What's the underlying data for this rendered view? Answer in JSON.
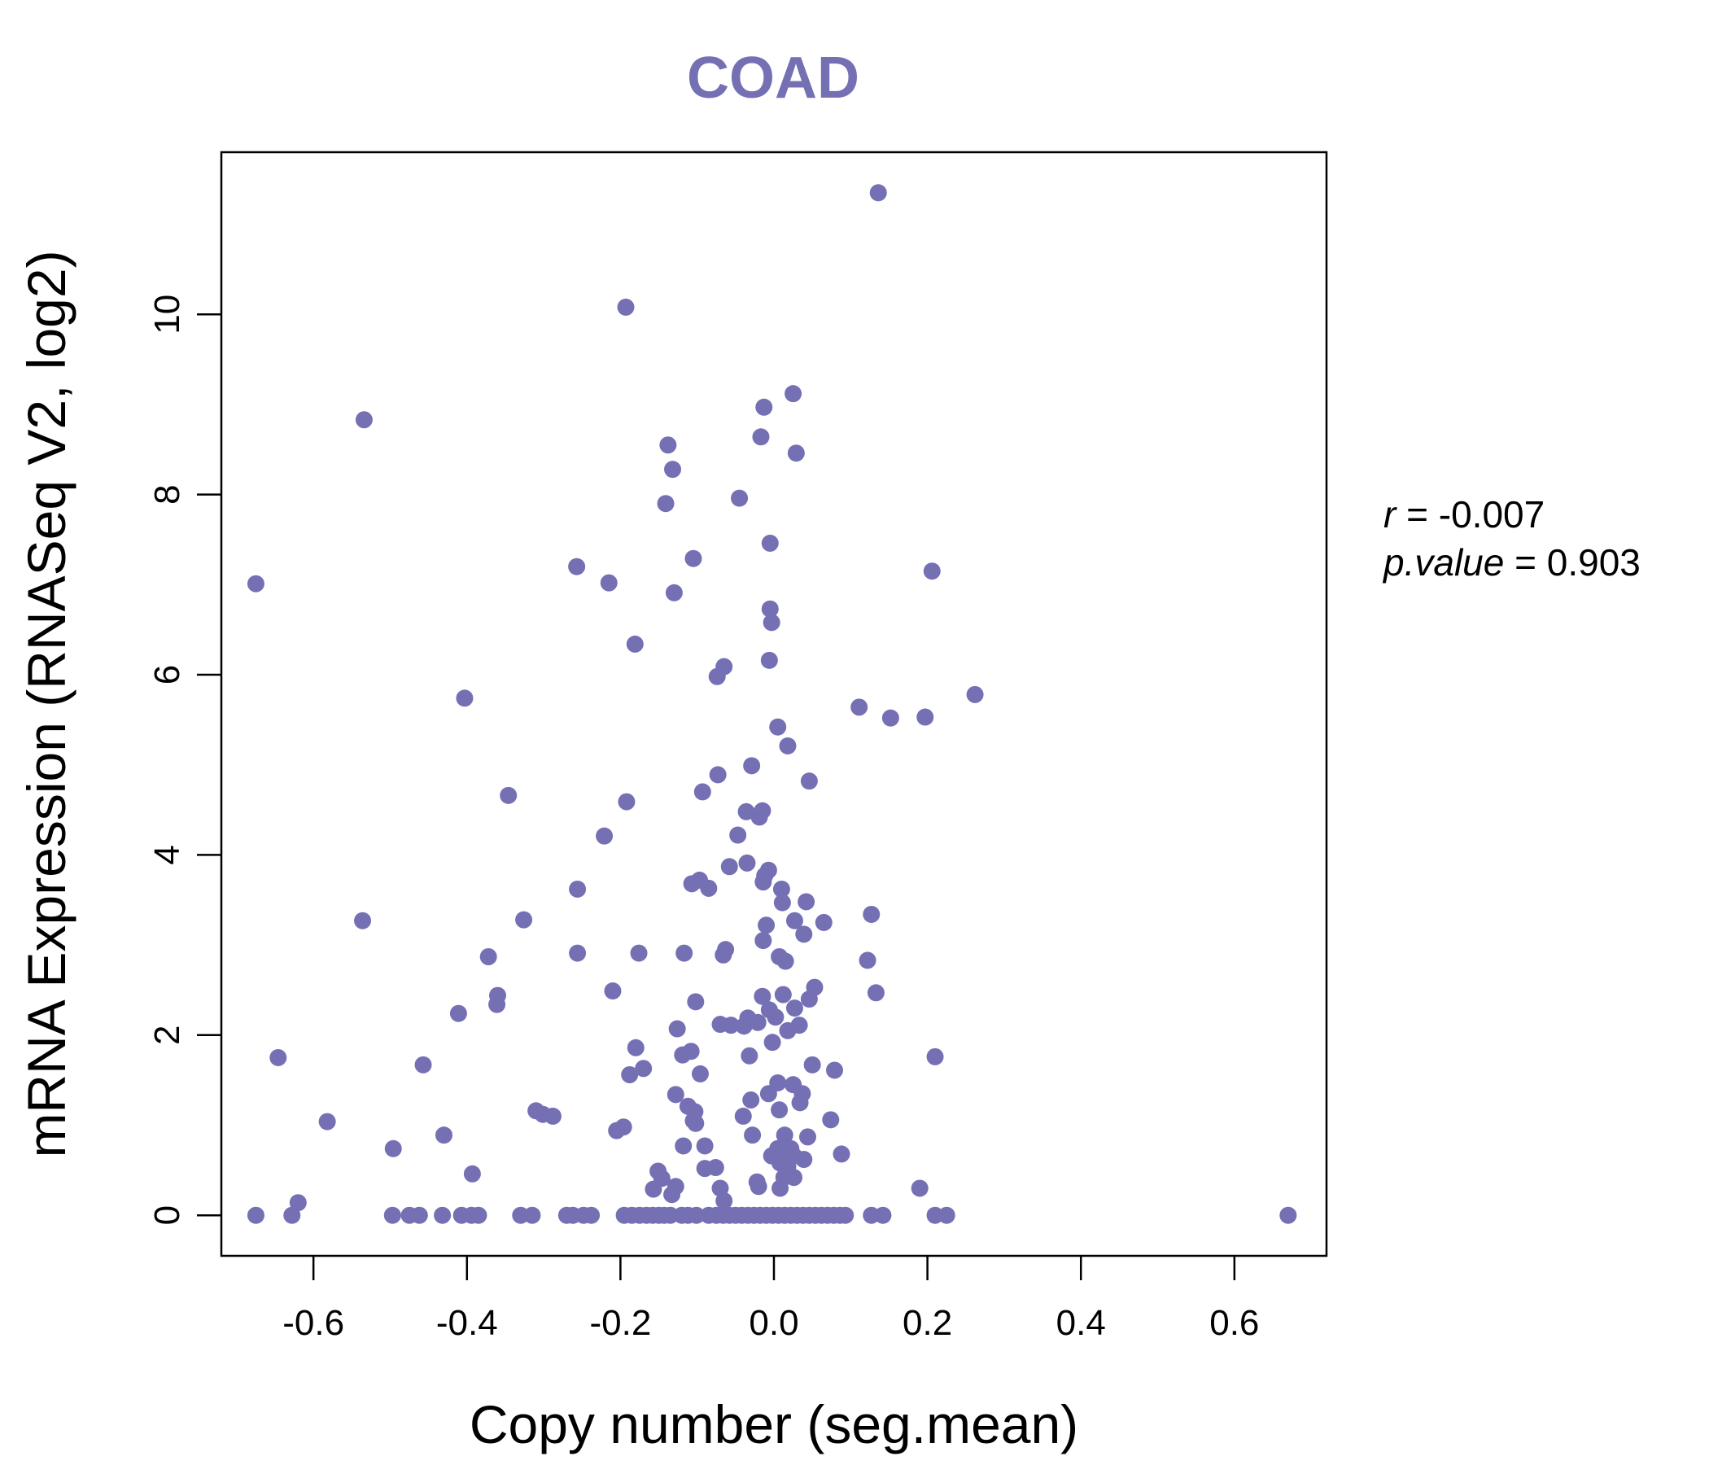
{
  "chart_data": {
    "type": "scatter",
    "title": "COAD",
    "xlabel": "Copy number (seg.mean)",
    "ylabel": "mRNA Expression (RNASeq V2, log2)",
    "xlim": [
      -0.72,
      0.72
    ],
    "ylim": [
      -0.45,
      11.8
    ],
    "x_ticks": [
      -0.6,
      -0.4,
      -0.2,
      0.0,
      0.2,
      0.4,
      0.6
    ],
    "x_tick_labels": [
      "-0.6",
      "-0.4",
      "-0.2",
      "0.0",
      "0.2",
      "0.4",
      "0.6"
    ],
    "y_ticks": [
      0,
      2,
      4,
      6,
      8,
      10
    ],
    "y_tick_labels": [
      "0",
      "2",
      "4",
      "6",
      "8",
      "10"
    ],
    "grid": false,
    "point_color": "#7570b3",
    "annotation": {
      "r_label": "r",
      "r_value": "-0.007",
      "p_label": "p.value",
      "p_value": "0.903"
    },
    "points": [
      [
        0.136,
        11.35
      ],
      [
        -0.193,
        10.08
      ],
      [
        0.025,
        9.12
      ],
      [
        -0.013,
        8.97
      ],
      [
        -0.534,
        8.83
      ],
      [
        -0.017,
        8.64
      ],
      [
        -0.138,
        8.55
      ],
      [
        0.029,
        8.46
      ],
      [
        -0.132,
        8.28
      ],
      [
        -0.045,
        7.96
      ],
      [
        -0.141,
        7.9
      ],
      [
        -0.005,
        7.46
      ],
      [
        -0.105,
        7.29
      ],
      [
        -0.257,
        7.2
      ],
      [
        0.206,
        7.15
      ],
      [
        -0.215,
        7.02
      ],
      [
        -0.675,
        7.01
      ],
      [
        -0.13,
        6.91
      ],
      [
        -0.005,
        6.73
      ],
      [
        -0.003,
        6.58
      ],
      [
        -0.181,
        6.34
      ],
      [
        -0.065,
        6.09
      ],
      [
        -0.006,
        6.16
      ],
      [
        -0.074,
        5.98
      ],
      [
        0.262,
        5.78
      ],
      [
        -0.403,
        5.74
      ],
      [
        0.111,
        5.64
      ],
      [
        0.152,
        5.52
      ],
      [
        0.197,
        5.53
      ],
      [
        0.005,
        5.42
      ],
      [
        0.018,
        5.21
      ],
      [
        -0.029,
        4.99
      ],
      [
        -0.073,
        4.89
      ],
      [
        0.046,
        4.82
      ],
      [
        -0.093,
        4.7
      ],
      [
        -0.346,
        4.66
      ],
      [
        -0.192,
        4.59
      ],
      [
        -0.036,
        4.48
      ],
      [
        -0.019,
        4.42
      ],
      [
        -0.015,
        4.49
      ],
      [
        -0.047,
        4.22
      ],
      [
        -0.221,
        4.21
      ],
      [
        -0.035,
        3.91
      ],
      [
        -0.058,
        3.87
      ],
      [
        -0.012,
        3.77
      ],
      [
        -0.007,
        3.83
      ],
      [
        -0.014,
        3.7
      ],
      [
        -0.107,
        3.68
      ],
      [
        -0.097,
        3.72
      ],
      [
        -0.085,
        3.63
      ],
      [
        0.01,
        3.62
      ],
      [
        -0.256,
        3.62
      ],
      [
        0.042,
        3.48
      ],
      [
        0.011,
        3.47
      ],
      [
        0.127,
        3.34
      ],
      [
        -0.536,
        3.27
      ],
      [
        -0.326,
        3.28
      ],
      [
        0.027,
        3.27
      ],
      [
        0.065,
        3.25
      ],
      [
        -0.01,
        3.22
      ],
      [
        0.039,
        3.12
      ],
      [
        -0.014,
        3.05
      ],
      [
        -0.256,
        2.91
      ],
      [
        -0.176,
        2.91
      ],
      [
        -0.117,
        2.91
      ],
      [
        -0.063,
        2.95
      ],
      [
        -0.066,
        2.89
      ],
      [
        -0.372,
        2.87
      ],
      [
        0.007,
        2.87
      ],
      [
        0.015,
        2.82
      ],
      [
        0.122,
        2.83
      ],
      [
        0.053,
        2.53
      ],
      [
        -0.21,
        2.49
      ],
      [
        0.133,
        2.47
      ],
      [
        0.012,
        2.45
      ],
      [
        -0.015,
        2.43
      ],
      [
        -0.36,
        2.44
      ],
      [
        0.046,
        2.4
      ],
      [
        -0.102,
        2.37
      ],
      [
        -0.361,
        2.34
      ],
      [
        0.027,
        2.3
      ],
      [
        -0.006,
        2.28
      ],
      [
        -0.411,
        2.24
      ],
      [
        0.002,
        2.2
      ],
      [
        -0.034,
        2.19
      ],
      [
        -0.021,
        2.14
      ],
      [
        -0.039,
        2.1
      ],
      [
        -0.07,
        2.12
      ],
      [
        -0.056,
        2.11
      ],
      [
        0.018,
        2.05
      ],
      [
        0.033,
        2.11
      ],
      [
        -0.126,
        2.07
      ],
      [
        -0.002,
        1.92
      ],
      [
        -0.18,
        1.86
      ],
      [
        -0.108,
        1.82
      ],
      [
        -0.119,
        1.78
      ],
      [
        -0.032,
        1.77
      ],
      [
        0.21,
        1.76
      ],
      [
        -0.646,
        1.75
      ],
      [
        -0.457,
        1.67
      ],
      [
        0.05,
        1.67
      ],
      [
        -0.17,
        1.63
      ],
      [
        0.079,
        1.61
      ],
      [
        -0.188,
        1.56
      ],
      [
        -0.096,
        1.57
      ],
      [
        0.005,
        1.47
      ],
      [
        0.025,
        1.45
      ],
      [
        0.037,
        1.35
      ],
      [
        -0.128,
        1.34
      ],
      [
        -0.007,
        1.35
      ],
      [
        -0.03,
        1.28
      ],
      [
        0.034,
        1.25
      ],
      [
        -0.112,
        1.21
      ],
      [
        0.007,
        1.17
      ],
      [
        -0.103,
        1.15
      ],
      [
        -0.31,
        1.16
      ],
      [
        -0.301,
        1.12
      ],
      [
        -0.288,
        1.1
      ],
      [
        -0.04,
        1.1
      ],
      [
        -0.105,
        1.05
      ],
      [
        0.074,
        1.06
      ],
      [
        -0.582,
        1.04
      ],
      [
        -0.102,
        1.02
      ],
      [
        -0.196,
        0.98
      ],
      [
        -0.205,
        0.94
      ],
      [
        -0.43,
        0.89
      ],
      [
        -0.028,
        0.89
      ],
      [
        0.014,
        0.89
      ],
      [
        0.044,
        0.87
      ],
      [
        -0.118,
        0.77
      ],
      [
        -0.09,
        0.77
      ],
      [
        0.005,
        0.74
      ],
      [
        0.022,
        0.74
      ],
      [
        -0.496,
        0.74
      ],
      [
        0.012,
        0.7
      ],
      [
        0.088,
        0.68
      ],
      [
        -0.003,
        0.66
      ],
      [
        0.026,
        0.66
      ],
      [
        0.039,
        0.62
      ],
      [
        0.008,
        0.58
      ],
      [
        -0.076,
        0.53
      ],
      [
        -0.09,
        0.52
      ],
      [
        0.018,
        0.54
      ],
      [
        -0.151,
        0.49
      ],
      [
        -0.393,
        0.46
      ],
      [
        0.013,
        0.42
      ],
      [
        0.026,
        0.42
      ],
      [
        -0.146,
        0.41
      ],
      [
        -0.022,
        0.37
      ],
      [
        -0.02,
        0.32
      ],
      [
        0.008,
        0.3
      ],
      [
        -0.157,
        0.29
      ],
      [
        -0.07,
        0.3
      ],
      [
        -0.128,
        0.32
      ],
      [
        0.19,
        0.3
      ],
      [
        -0.133,
        0.23
      ],
      [
        -0.065,
        0.16
      ],
      [
        -0.62,
        0.14
      ],
      [
        -0.675,
        0.0
      ],
      [
        -0.628,
        0.0
      ],
      [
        -0.497,
        0.0
      ],
      [
        -0.475,
        0.0
      ],
      [
        -0.462,
        0.0
      ],
      [
        -0.432,
        0.0
      ],
      [
        -0.407,
        0.0
      ],
      [
        -0.394,
        0.0
      ],
      [
        -0.385,
        0.0
      ],
      [
        -0.33,
        0.0
      ],
      [
        -0.315,
        0.0
      ],
      [
        -0.27,
        0.0
      ],
      [
        -0.262,
        0.0
      ],
      [
        -0.248,
        0.0
      ],
      [
        -0.238,
        0.0
      ],
      [
        -0.195,
        0.0
      ],
      [
        -0.185,
        0.0
      ],
      [
        -0.175,
        0.0
      ],
      [
        -0.166,
        0.0
      ],
      [
        -0.158,
        0.0
      ],
      [
        -0.15,
        0.0
      ],
      [
        -0.143,
        0.0
      ],
      [
        -0.135,
        0.0
      ],
      [
        -0.12,
        0.0
      ],
      [
        -0.112,
        0.0
      ],
      [
        -0.101,
        0.0
      ],
      [
        -0.085,
        0.0
      ],
      [
        -0.075,
        0.0
      ],
      [
        -0.066,
        0.0
      ],
      [
        -0.058,
        0.0
      ],
      [
        -0.05,
        0.0
      ],
      [
        -0.042,
        0.0
      ],
      [
        -0.034,
        0.0
      ],
      [
        -0.026,
        0.0
      ],
      [
        -0.018,
        0.0
      ],
      [
        -0.01,
        0.0
      ],
      [
        -0.002,
        0.0
      ],
      [
        0.006,
        0.0
      ],
      [
        0.014,
        0.0
      ],
      [
        0.022,
        0.0
      ],
      [
        0.03,
        0.0
      ],
      [
        0.038,
        0.0
      ],
      [
        0.046,
        0.0
      ],
      [
        0.054,
        0.0
      ],
      [
        0.062,
        0.0
      ],
      [
        0.07,
        0.0
      ],
      [
        0.078,
        0.0
      ],
      [
        0.086,
        0.0
      ],
      [
        0.093,
        0.0
      ],
      [
        0.127,
        0.0
      ],
      [
        0.142,
        0.0
      ],
      [
        0.21,
        0.0
      ],
      [
        0.225,
        0.0
      ],
      [
        0.67,
        0.0
      ]
    ]
  }
}
